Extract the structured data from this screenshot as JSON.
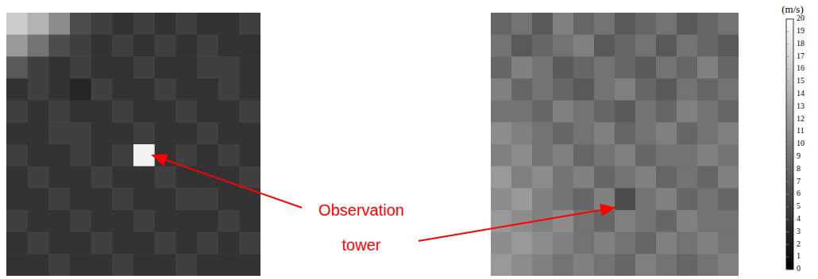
{
  "chart_data": [
    {
      "type": "heatmap",
      "tick_labels": false,
      "cells": [
        [
          16,
          14,
          11,
          6,
          5,
          4,
          5,
          4,
          5,
          4,
          4,
          5
        ],
        [
          12,
          9,
          6,
          5,
          4,
          5,
          4,
          5,
          4,
          5,
          4,
          4
        ],
        [
          7,
          5,
          4,
          5,
          4,
          4,
          5,
          4,
          4,
          5,
          5,
          4
        ],
        [
          4,
          5,
          4,
          3,
          5,
          4,
          4,
          5,
          4,
          4,
          5,
          4
        ],
        [
          5,
          4,
          5,
          4,
          4,
          5,
          4,
          4,
          5,
          4,
          4,
          5
        ],
        [
          4,
          4,
          5,
          5,
          4,
          4,
          5,
          4,
          4,
          5,
          4,
          4
        ],
        [
          5,
          4,
          4,
          5,
          4,
          5,
          19,
          4,
          5,
          4,
          5,
          4
        ],
        [
          4,
          5,
          4,
          4,
          5,
          4,
          4,
          5,
          4,
          4,
          4,
          5
        ],
        [
          4,
          4,
          5,
          4,
          4,
          5,
          4,
          4,
          5,
          5,
          4,
          4
        ],
        [
          5,
          4,
          4,
          5,
          4,
          4,
          5,
          4,
          4,
          4,
          5,
          4
        ],
        [
          4,
          5,
          4,
          4,
          5,
          4,
          4,
          5,
          4,
          5,
          4,
          5
        ],
        [
          4,
          4,
          5,
          4,
          4,
          5,
          4,
          4,
          5,
          4,
          4,
          4
        ]
      ]
    },
    {
      "type": "heatmap",
      "tick_labels": false,
      "cells": [
        [
          8,
          9,
          7,
          10,
          8,
          9,
          7,
          8,
          9,
          7,
          8,
          9
        ],
        [
          9,
          7,
          8,
          9,
          10,
          7,
          8,
          9,
          7,
          9,
          8,
          7
        ],
        [
          8,
          10,
          9,
          7,
          8,
          9,
          8,
          7,
          9,
          8,
          10,
          8
        ],
        [
          10,
          8,
          9,
          8,
          7,
          9,
          10,
          8,
          7,
          9,
          8,
          9
        ],
        [
          9,
          9,
          8,
          10,
          9,
          8,
          7,
          9,
          8,
          10,
          9,
          8
        ],
        [
          11,
          10,
          9,
          8,
          9,
          10,
          8,
          9,
          10,
          8,
          9,
          10
        ],
        [
          10,
          11,
          9,
          10,
          8,
          9,
          10,
          8,
          9,
          9,
          10,
          9
        ],
        [
          12,
          10,
          11,
          9,
          10,
          8,
          9,
          10,
          8,
          9,
          8,
          10
        ],
        [
          11,
          12,
          10,
          9,
          8,
          10,
          6,
          9,
          10,
          8,
          9,
          8
        ],
        [
          12,
          11,
          10,
          11,
          9,
          8,
          10,
          9,
          8,
          10,
          9,
          9
        ],
        [
          11,
          12,
          11,
          10,
          9,
          10,
          9,
          8,
          10,
          9,
          10,
          9
        ],
        [
          12,
          11,
          10,
          9,
          10,
          9,
          8,
          10,
          9,
          8,
          9,
          10
        ]
      ]
    }
  ],
  "colorbar": {
    "title": "(m/s)",
    "range": [
      0,
      20
    ],
    "ticks": [
      0,
      1,
      2,
      3,
      4,
      5,
      6,
      7,
      8,
      9,
      10,
      11,
      12,
      13,
      14,
      15,
      16,
      17,
      18,
      19,
      20
    ]
  },
  "annotation": {
    "text": "Observation tower",
    "color": "#ff0000"
  }
}
